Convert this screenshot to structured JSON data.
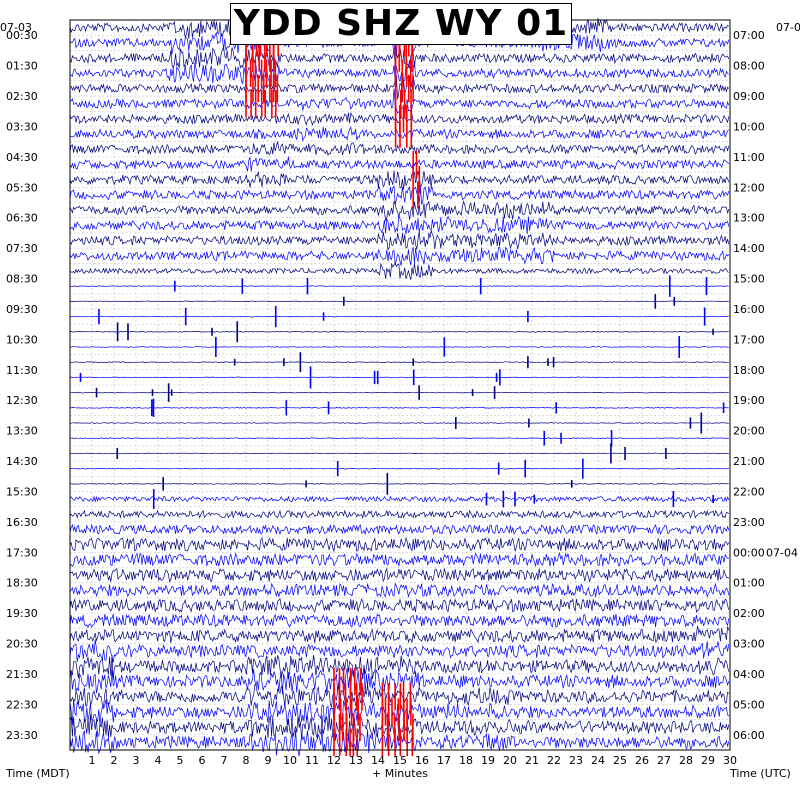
{
  "chart_data": {
    "type": "helicorder",
    "title": "YDD SHZ WY 01",
    "xlabel": "+ Minutes",
    "left_axis_label": "Time (MDT)",
    "right_axis_label": "Time (UTC)",
    "left_date": "07-03",
    "right_date": "07-0",
    "right_date_change": "07-04",
    "x_ticks": [
      "1",
      "2",
      "3",
      "4",
      "5",
      "6",
      "7",
      "8",
      "9",
      "10",
      "11",
      "12",
      "13",
      "14",
      "15",
      "16",
      "17",
      "18",
      "19",
      "20",
      "21",
      "22",
      "23",
      "24",
      "25",
      "26",
      "27",
      "28",
      "29",
      "30"
    ],
    "xlim": [
      0,
      30
    ],
    "left_times": [
      "00:30",
      "01:30",
      "02:30",
      "03:30",
      "04:30",
      "05:30",
      "06:30",
      "07:30",
      "08:30",
      "09:30",
      "10:30",
      "11:30",
      "12:30",
      "13:30",
      "14:30",
      "15:30",
      "16:30",
      "17:30",
      "18:30",
      "19:30",
      "20:30",
      "21:30",
      "22:30",
      "23:30"
    ],
    "right_times": [
      "07:00",
      "08:00",
      "09:00",
      "10:00",
      "11:00",
      "12:00",
      "13:00",
      "14:00",
      "15:00",
      "16:00",
      "17:00",
      "18:00",
      "19:00",
      "20:00",
      "21:00",
      "22:00",
      "23:00",
      "00:00",
      "01:00",
      "02:00",
      "03:00",
      "04:00",
      "05:00",
      "06:00"
    ],
    "trace_colors": [
      "#000080",
      "#0000ff"
    ],
    "clip_color": "#ff0000",
    "grid": true
  }
}
